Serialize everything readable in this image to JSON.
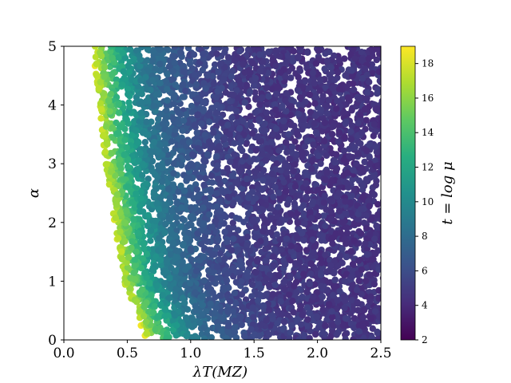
{
  "chart_data": {
    "type": "scatter",
    "title": "",
    "xlabel": "λT(MZ)",
    "ylabel": "α",
    "xlim": [
      0,
      2.5
    ],
    "ylim": [
      0,
      5
    ],
    "x_ticks": [
      "0.0",
      "0.5",
      "1.0",
      "1.5",
      "2.0",
      "2.5"
    ],
    "y_ticks": [
      "0",
      "1",
      "2",
      "3",
      "4",
      "5"
    ],
    "colorbar": {
      "label": "t = log μ",
      "range": [
        2,
        19
      ],
      "ticks": [
        "2",
        "4",
        "6",
        "8",
        "10",
        "12",
        "14",
        "16",
        "18"
      ],
      "colormap": "viridis"
    },
    "boundary_curve": {
      "description_values": [
        {
          "alpha": 0.0,
          "lambda_min": 0.65,
          "t_max": 18.5
        },
        {
          "alpha": 1.0,
          "lambda_min": 0.47,
          "t_max": 17.5
        },
        {
          "alpha": 2.0,
          "lambda_min": 0.4,
          "t_max": 18.0
        },
        {
          "alpha": 3.0,
          "lambda_min": 0.33,
          "t_max": 17.5
        },
        {
          "alpha": 4.0,
          "lambda_min": 0.28,
          "t_max": 17.5
        },
        {
          "alpha": 5.0,
          "lambda_min": 0.22,
          "t_max": 18.5
        }
      ]
    },
    "t_far_right": 4.5,
    "grid": false,
    "legend": "none"
  }
}
